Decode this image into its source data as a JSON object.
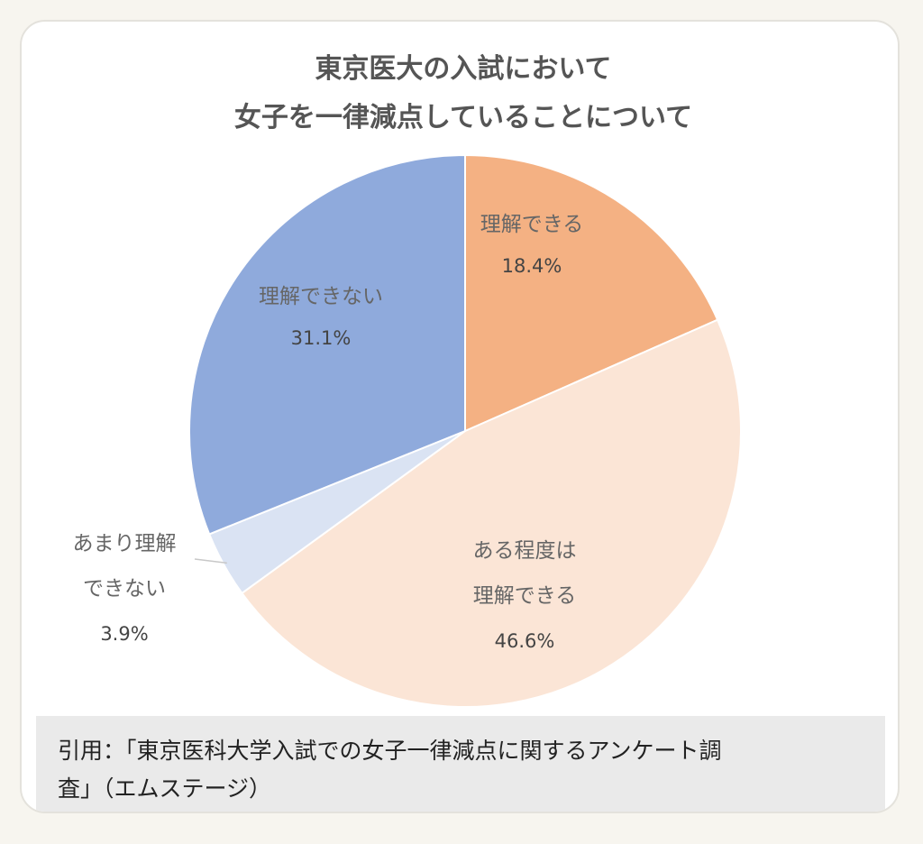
{
  "chart_data": {
    "type": "pie",
    "title": [
      "東京医大の入試において",
      "女子を一律減点していることについて"
    ],
    "start_angle_deg": 0,
    "direction": "clockwise",
    "slices": [
      {
        "label_lines": [
          "理解できる"
        ],
        "value": 18.4,
        "value_label": "18.4%",
        "color": "#f4b183"
      },
      {
        "label_lines": [
          "ある程度は",
          "理解できる"
        ],
        "value": 46.6,
        "value_label": "46.6%",
        "color": "#fbe5d6"
      },
      {
        "label_lines": [
          "あまり理解",
          "できない"
        ],
        "value": 3.9,
        "value_label": "3.9%",
        "color": "#dae3f3"
      },
      {
        "label_lines": [
          "理解できない"
        ],
        "value": 31.1,
        "value_label": "31.1%",
        "color": "#8faadc"
      }
    ],
    "legend": "none"
  },
  "source": {
    "line1": "引用：「東京医科大学入試での女子一律減点に関するアンケート調",
    "line2": "査」（エムステージ）"
  }
}
